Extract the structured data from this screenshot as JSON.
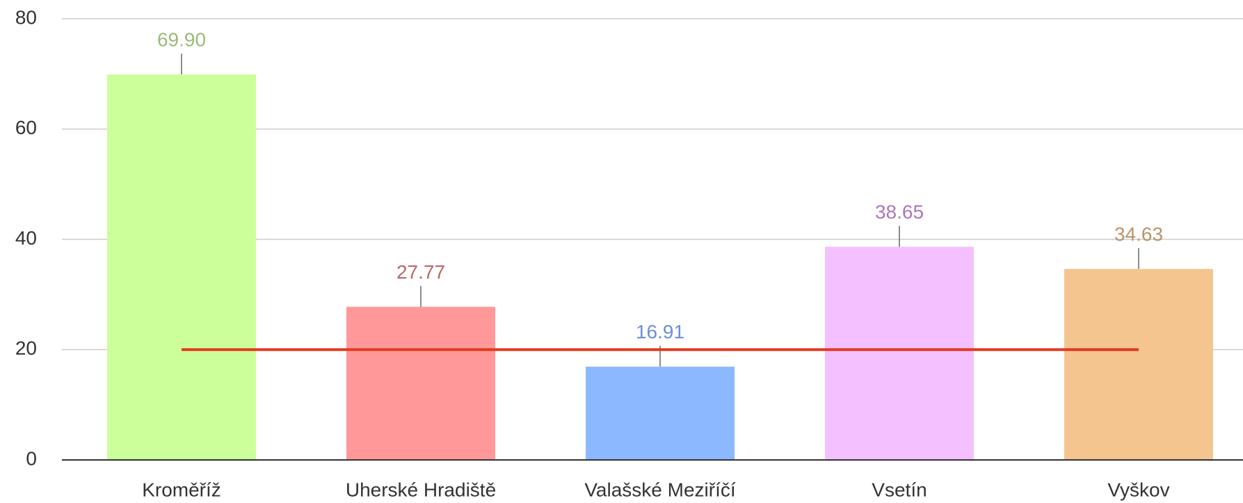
{
  "chart_data": {
    "type": "bar",
    "categories": [
      "Kroměříž",
      "Uherské Hradiště",
      "Valašské Meziříčí",
      "Vsetín",
      "Vyškov"
    ],
    "values": [
      69.9,
      27.77,
      16.91,
      38.65,
      34.63
    ],
    "value_labels": [
      "69.90",
      "27.77",
      "16.91",
      "38.65",
      "34.63"
    ],
    "colors": [
      "#ccff99",
      "#ff9999",
      "#8cb8ff",
      "#f5c0ff",
      "#f5c58f"
    ],
    "label_colors": [
      "#99bb77",
      "#bb6666",
      "#6b8fd6",
      "#aa77bb",
      "#b8946a"
    ],
    "reference_line": {
      "value": 20,
      "color": "#e03a1e"
    },
    "ylim": [
      0,
      80
    ],
    "yticks": [
      0,
      20,
      40,
      60,
      80
    ],
    "grid": true
  }
}
